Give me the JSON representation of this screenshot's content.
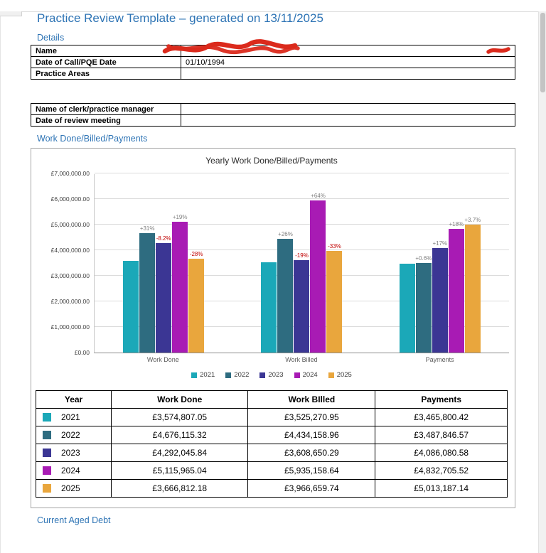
{
  "page": {
    "title": "Practice Review Template – generated on 13/11/2025",
    "accent_color": "#2E74B5",
    "sections": {
      "details": "Details",
      "work": "Work Done/Billed/Payments",
      "aged_debt": "Current Aged Debt"
    }
  },
  "details": {
    "table1": {
      "rows": [
        {
          "label": "Name",
          "value": "",
          "redacted": true
        },
        {
          "label": "Date of Call/PQE Date",
          "value": "01/10/1994"
        },
        {
          "label": "Practice Areas",
          "value": ""
        }
      ]
    },
    "table2": {
      "rows": [
        {
          "label": "Name of clerk/practice manager",
          "value": ""
        },
        {
          "label": "Date of review meeting",
          "value": ""
        }
      ]
    }
  },
  "chart_data": {
    "type": "bar",
    "title": "Yearly Work Done/Billed/Payments",
    "categories": [
      "Work Done",
      "Work Billed",
      "Payments"
    ],
    "series": [
      {
        "name": "2021",
        "color": "#1BA8B8",
        "values": [
          3574807.05,
          3525270.95,
          3465800.42
        ],
        "pct_labels": [
          "",
          "",
          ""
        ]
      },
      {
        "name": "2022",
        "color": "#2E6C80",
        "values": [
          4676115.32,
          4434158.96,
          3487846.57
        ],
        "pct_labels": [
          "+31%",
          "+26%",
          "+0.6%"
        ]
      },
      {
        "name": "2023",
        "color": "#3B3694",
        "values": [
          4292045.84,
          3608650.29,
          4086080.58
        ],
        "pct_labels": [
          "-8.2%",
          "-19%",
          "+17%"
        ]
      },
      {
        "name": "2024",
        "color": "#A81BB4",
        "values": [
          5115965.04,
          5935158.64,
          4832705.52
        ],
        "pct_labels": [
          "+19%",
          "+64%",
          "+18%"
        ]
      },
      {
        "name": "2025",
        "color": "#E9A63D",
        "values": [
          3666812.18,
          3966659.74,
          5013187.14
        ],
        "pct_labels": [
          "-28%",
          "-33%",
          "+3.7%"
        ]
      }
    ],
    "ylim": [
      0,
      7000000
    ],
    "y_ticks": [
      "£0.00",
      "£1,000,000.00",
      "£2,000,000.00",
      "£3,000,000.00",
      "£4,000,000.00",
      "£5,000,000.00",
      "£6,000,000.00",
      "£7,000,000.00"
    ],
    "grid": true,
    "legend_position": "bottom",
    "label_colors": {
      "positive": "#7F7F7F",
      "negative": "#C00000"
    }
  },
  "summary_table": {
    "headers": [
      "Year",
      "Work Done",
      "Work BIlled",
      "Payments"
    ],
    "rows": [
      {
        "year": "2021",
        "color": "#1BA8B8",
        "cells": [
          "£3,574,807.05",
          "£3,525,270.95",
          "£3,465,800.42"
        ]
      },
      {
        "year": "2022",
        "color": "#2E6C80",
        "cells": [
          "£4,676,115.32",
          "£4,434,158.96",
          "£3,487,846.57"
        ]
      },
      {
        "year": "2023",
        "color": "#3B3694",
        "cells": [
          "£4,292,045.84",
          "£3,608,650.29",
          "£4,086,080.58"
        ]
      },
      {
        "year": "2024",
        "color": "#A81BB4",
        "cells": [
          "£5,115,965.04",
          "£5,935,158.64",
          "£4,832,705.52"
        ]
      },
      {
        "year": "2025",
        "color": "#E9A63D",
        "cells": [
          "£3,666,812.18",
          "£3,966,659.74",
          "£5,013,187.14"
        ]
      }
    ]
  }
}
